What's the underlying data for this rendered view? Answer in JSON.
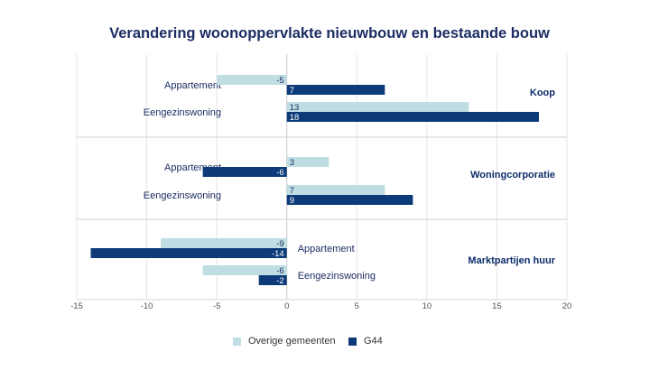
{
  "chart_data": {
    "type": "bar",
    "orientation": "horizontal",
    "title": "Verandering woonoppervlakte nieuwbouw en bestaande bouw",
    "xlim": [
      -15,
      20
    ],
    "xticks": [
      -15,
      -10,
      -5,
      0,
      5,
      10,
      15,
      20
    ],
    "grid": true,
    "legend_position": "bottom",
    "series": [
      {
        "name": "Overige gemeenten",
        "color": "#bfdde3"
      },
      {
        "name": "G44",
        "color": "#0d3b7a"
      }
    ],
    "groups": [
      {
        "label": "Koop",
        "rows": [
          {
            "label": "Appartement",
            "values": [
              -5,
              7
            ]
          },
          {
            "label": "Eengezinswoning",
            "values": [
              13,
              18
            ]
          }
        ]
      },
      {
        "label": "Woningcorporatie",
        "rows": [
          {
            "label": "Appartement",
            "values": [
              3,
              -6
            ]
          },
          {
            "label": "Eengezinswoning",
            "values": [
              7,
              9
            ]
          }
        ]
      },
      {
        "label": "Marktpartijen huur",
        "rows": [
          {
            "label": "Appartement",
            "values": [
              -9,
              -14
            ]
          },
          {
            "label": "Eengezinswoning",
            "values": [
              -6,
              -2
            ]
          }
        ]
      }
    ]
  }
}
